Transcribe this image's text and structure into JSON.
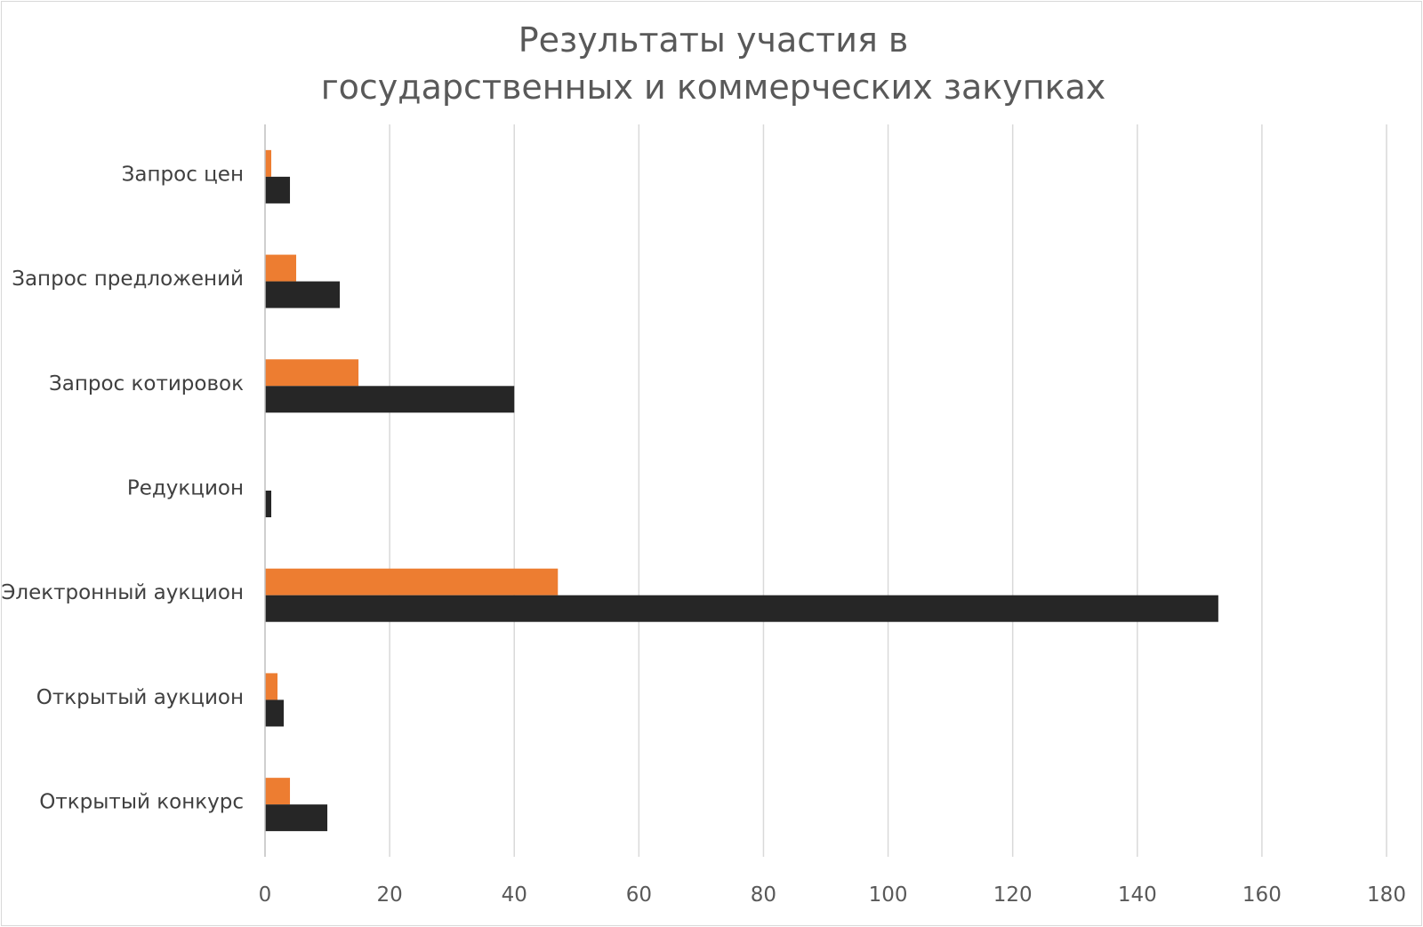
{
  "chart_data": {
    "type": "bar",
    "orientation": "horizontal",
    "title_lines": [
      "Результаты участия в",
      "государственных и коммерческих закупках"
    ],
    "categories": [
      "Запрос цен",
      "Запрос предложений",
      "Запрос котировок",
      "Редукцион",
      "Электронный аукцион",
      "Открытый аукцион",
      "Открытый конкурс"
    ],
    "series": [
      {
        "color": "#ed7d31",
        "values": [
          1,
          5,
          15,
          0,
          47,
          2,
          4
        ]
      },
      {
        "color": "#262626",
        "values": [
          4,
          12,
          40,
          1,
          153,
          3,
          10
        ]
      }
    ],
    "xlim": [
      0,
      180
    ],
    "x_ticks": [
      0,
      20,
      40,
      60,
      80,
      100,
      120,
      140,
      160,
      180
    ],
    "grid": true,
    "legend": "none"
  }
}
